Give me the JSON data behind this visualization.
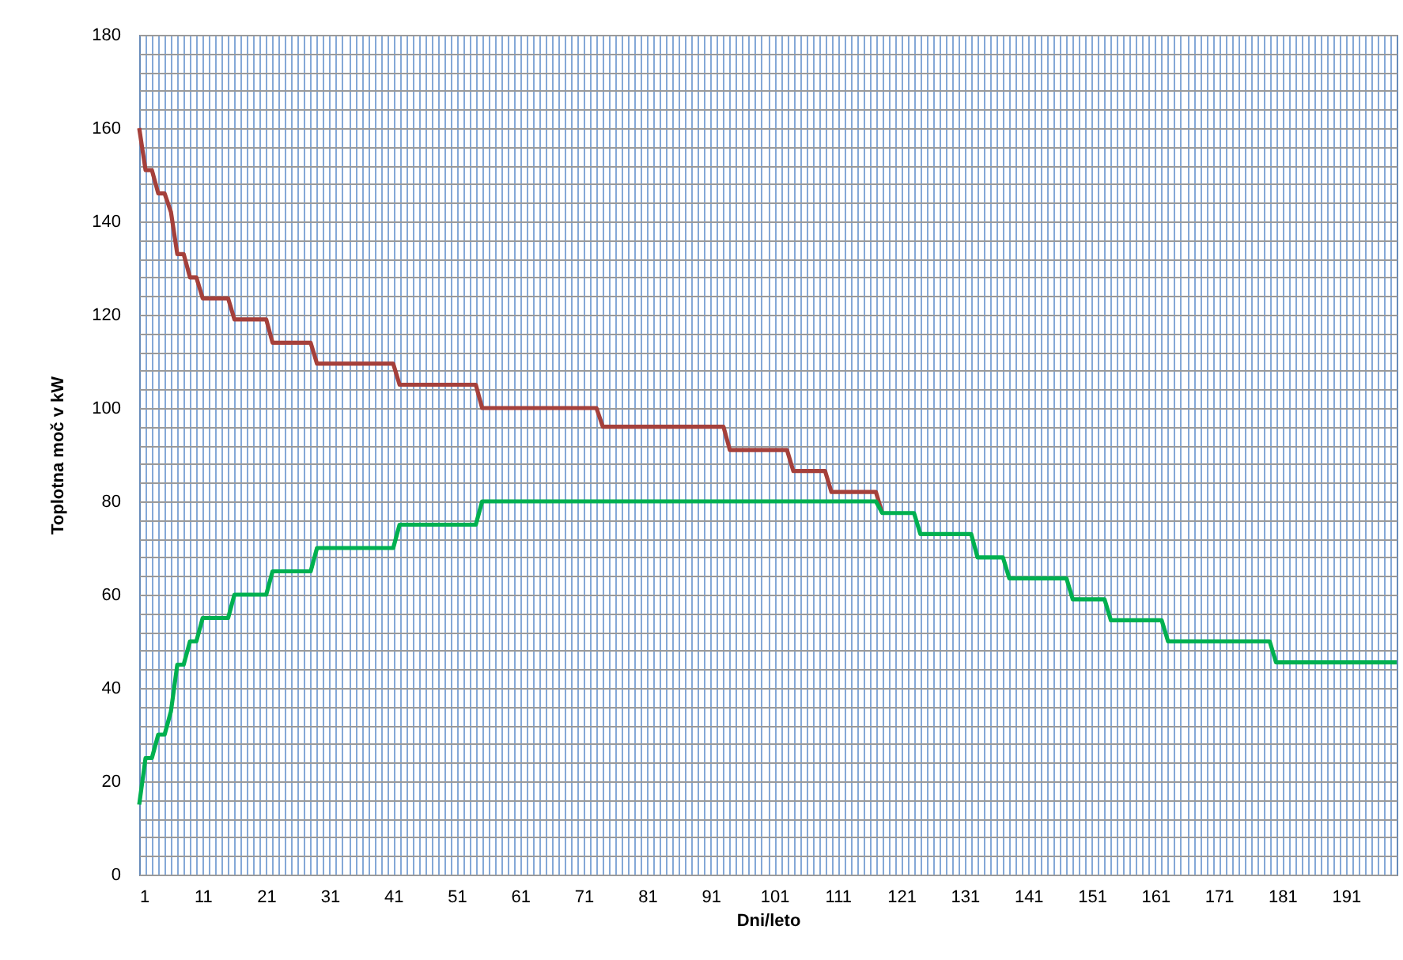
{
  "chart_data": {
    "type": "line",
    "xlabel": "Dni/leto",
    "ylabel": "Toplotna moč v kW",
    "x": [
      1,
      2,
      3,
      4,
      5,
      6,
      7,
      8,
      9,
      10,
      11,
      12,
      13,
      14,
      15,
      16,
      17,
      18,
      19,
      20,
      21,
      22,
      23,
      24,
      25,
      26,
      27,
      28,
      29,
      30,
      31,
      32,
      33,
      34,
      35,
      36,
      37,
      38,
      39,
      40,
      41,
      42,
      43,
      44,
      45,
      46,
      47,
      48,
      49,
      50,
      51,
      52,
      53,
      54,
      55,
      56,
      57,
      58,
      59,
      60,
      61,
      62,
      63,
      64,
      65,
      66,
      67,
      68,
      69,
      70,
      71,
      72,
      73,
      74,
      75,
      76,
      77,
      78,
      79,
      80,
      81,
      82,
      83,
      84,
      85,
      86,
      87,
      88,
      89,
      90,
      91,
      92,
      93,
      94,
      95,
      96,
      97,
      98,
      99,
      100,
      101,
      102,
      103,
      104,
      105,
      106,
      107,
      108,
      109,
      110,
      111,
      112,
      113,
      114,
      115,
      116,
      117,
      118,
      119,
      120,
      121,
      122,
      123,
      124,
      125,
      126,
      127,
      128,
      129,
      130,
      131,
      132,
      133,
      134,
      135,
      136,
      137,
      138,
      139,
      140,
      141,
      142,
      143,
      144,
      145,
      146,
      147,
      148,
      149,
      150,
      151,
      152,
      153,
      154,
      155,
      156,
      157,
      158,
      159,
      160,
      161,
      162,
      163,
      164,
      165,
      166,
      167,
      168,
      169,
      170,
      171,
      172,
      173,
      174,
      175,
      176,
      177,
      178,
      179,
      180,
      181,
      182,
      183,
      184,
      185,
      186,
      187,
      188,
      189,
      190,
      191,
      192,
      193,
      194,
      195,
      196,
      197,
      198,
      199
    ],
    "series": [
      {
        "color": "#a5403b",
        "values": [
          160,
          151,
          151,
          146,
          146,
          142,
          133,
          133,
          128,
          128,
          123.5,
          123.5,
          123.5,
          123.5,
          123.5,
          119,
          119,
          119,
          119,
          119,
          119,
          114,
          114,
          114,
          114,
          114,
          114,
          114,
          109.5,
          109.5,
          109.5,
          109.5,
          109.5,
          109.5,
          109.5,
          109.5,
          109.5,
          109.5,
          109.5,
          109.5,
          109.5,
          105,
          105,
          105,
          105,
          105,
          105,
          105,
          105,
          105,
          105,
          105,
          105,
          105,
          100,
          100,
          100,
          100,
          100,
          100,
          100,
          100,
          100,
          100,
          100,
          100,
          100,
          100,
          100,
          100,
          100,
          100,
          100,
          96,
          96,
          96,
          96,
          96,
          96,
          96,
          96,
          96,
          96,
          96,
          96,
          96,
          96,
          96,
          96,
          96,
          96,
          96,
          96,
          91,
          91,
          91,
          91,
          91,
          91,
          91,
          91,
          91,
          91,
          86.5,
          86.5,
          86.5,
          86.5,
          86.5,
          86.5,
          82,
          82,
          82,
          82,
          82,
          82,
          82,
          82,
          77.5,
          null,
          null,
          null,
          null,
          null,
          null,
          null,
          null,
          null,
          null,
          null,
          null,
          null,
          null,
          null,
          null,
          null,
          null,
          null,
          null,
          null,
          null,
          null,
          null,
          null,
          null,
          null,
          null,
          null,
          null,
          null,
          null,
          null,
          null,
          null,
          null,
          null,
          null,
          null,
          null,
          null,
          null,
          null,
          null,
          null,
          null,
          null,
          null,
          null,
          null,
          null,
          null,
          null,
          null,
          null,
          null,
          null,
          null,
          null,
          null,
          null,
          null,
          null,
          null,
          null,
          null,
          null,
          null,
          null,
          null,
          null,
          null,
          null,
          null,
          null,
          null,
          null,
          null,
          null,
          null,
          null
        ]
      },
      {
        "color": "#00b050",
        "values": [
          15,
          25,
          25,
          30,
          30,
          35,
          45,
          45,
          50,
          50,
          55,
          55,
          55,
          55,
          55,
          60,
          60,
          60,
          60,
          60,
          60,
          65,
          65,
          65,
          65,
          65,
          65,
          65,
          70,
          70,
          70,
          70,
          70,
          70,
          70,
          70,
          70,
          70,
          70,
          70,
          70,
          75,
          75,
          75,
          75,
          75,
          75,
          75,
          75,
          75,
          75,
          75,
          75,
          75,
          80,
          80,
          80,
          80,
          80,
          80,
          80,
          80,
          80,
          80,
          80,
          80,
          80,
          80,
          80,
          80,
          80,
          80,
          80,
          80,
          80,
          80,
          80,
          80,
          80,
          80,
          80,
          80,
          80,
          80,
          80,
          80,
          80,
          80,
          80,
          80,
          80,
          80,
          80,
          80,
          80,
          80,
          80,
          80,
          80,
          80,
          80,
          80,
          80,
          80,
          80,
          80,
          80,
          80,
          80,
          80,
          80,
          80,
          80,
          80,
          80,
          80,
          80,
          77.5,
          77.5,
          77.5,
          77.5,
          77.5,
          77.5,
          73,
          73,
          73,
          73,
          73,
          73,
          73,
          73,
          73,
          68,
          68,
          68,
          68,
          68,
          63.5,
          63.5,
          63.5,
          63.5,
          63.5,
          63.5,
          63.5,
          63.5,
          63.5,
          63.5,
          59,
          59,
          59,
          59,
          59,
          59,
          54.5,
          54.5,
          54.5,
          54.5,
          54.5,
          54.5,
          54.5,
          54.5,
          54.5,
          50,
          50,
          50,
          50,
          50,
          50,
          50,
          50,
          50,
          50,
          50,
          50,
          50,
          50,
          50,
          50,
          50,
          45.5,
          45.5,
          45.5,
          45.5,
          45.5,
          45.5,
          45.5,
          45.5,
          45.5,
          45.5,
          45.5,
          45.5,
          45.5,
          45.5,
          45.5,
          45.5,
          45.5,
          45.5,
          45.5,
          45.5
        ]
      }
    ],
    "xlim": [
      1,
      199
    ],
    "xticks": [
      1,
      11,
      21,
      31,
      41,
      51,
      61,
      71,
      81,
      91,
      101,
      111,
      121,
      131,
      141,
      151,
      161,
      171,
      181,
      191
    ],
    "ylim": [
      0,
      180
    ],
    "yticks": [
      0,
      {
        "value": 4,
        "label": null
      },
      {
        "value": 8,
        "label": null
      },
      {
        "value": 12,
        "label": null
      },
      {
        "value": 16,
        "label": null
      },
      20,
      {
        "value": 24,
        "label": null
      },
      {
        "value": 28,
        "label": null
      },
      {
        "value": 32,
        "label": null
      },
      {
        "value": 36,
        "label": null
      },
      40,
      {
        "value": 44,
        "label": null
      },
      {
        "value": 48,
        "label": null
      },
      {
        "value": 52,
        "label": null
      },
      {
        "value": 56,
        "label": null
      },
      60,
      {
        "value": 64,
        "label": null
      },
      {
        "value": 68,
        "label": null
      },
      {
        "value": 72,
        "label": null
      },
      {
        "value": 76,
        "label": null
      },
      80,
      {
        "value": 84,
        "label": null
      },
      {
        "value": 88,
        "label": null
      },
      {
        "value": 92,
        "label": null
      },
      {
        "value": 96,
        "label": null
      },
      100,
      {
        "value": 104,
        "label": null
      },
      {
        "value": 108,
        "label": null
      },
      {
        "value": 112,
        "label": null
      },
      {
        "value": 116,
        "label": null
      },
      120,
      {
        "value": 124,
        "label": null
      },
      {
        "value": 128,
        "label": null
      },
      {
        "value": 132,
        "label": null
      },
      {
        "value": 136,
        "label": null
      },
      140,
      {
        "value": 144,
        "label": null
      },
      {
        "value": 148,
        "label": null
      },
      {
        "value": 152,
        "label": null
      },
      {
        "value": 156,
        "label": null
      },
      160,
      {
        "value": 164,
        "label": null
      },
      {
        "value": 168,
        "label": null
      },
      {
        "value": 172,
        "label": null
      },
      {
        "value": 176,
        "label": null
      },
      180
    ],
    "grid": true,
    "legend": false,
    "marker": "none",
    "line_style": "solid"
  }
}
